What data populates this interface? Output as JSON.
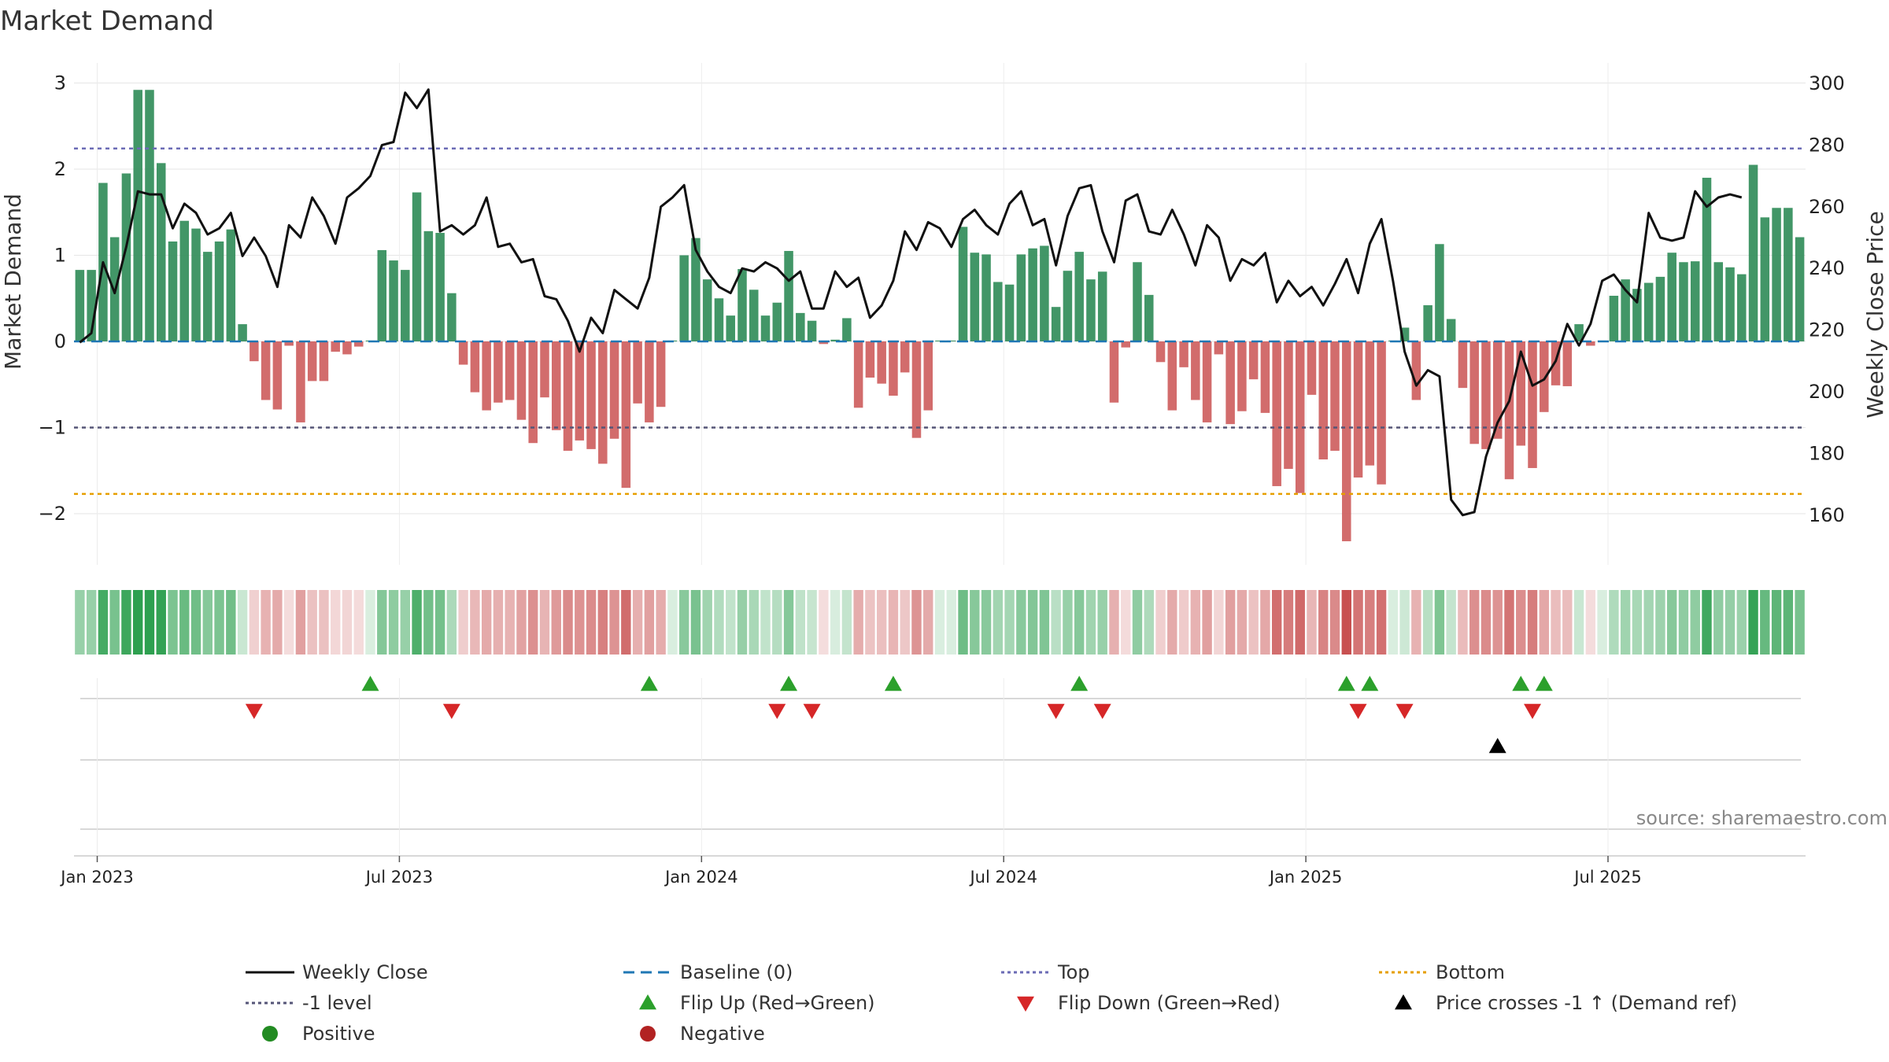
{
  "chart_data": {
    "type": "bar",
    "title": "Market Demand",
    "ylabel_left": "Market Demand",
    "ylabel_right": "Weekly Close Price",
    "ylim_left": [
      -2.55,
      3.2
    ],
    "ylim_right": [
      145,
      303
    ],
    "left_ticks": [
      3,
      2,
      1,
      0,
      -1,
      -2
    ],
    "left_tick_labels": [
      "3",
      "2",
      "1",
      "0",
      "−1",
      "−2"
    ],
    "right_ticks": [
      300,
      280,
      260,
      240,
      220,
      200,
      180,
      160
    ],
    "x_tick_labels": [
      "Jan 2023",
      "Jul 2023",
      "Jan 2024",
      "Jul 2024",
      "Jan 2025",
      "Jul 2025"
    ],
    "x_tick_index": [
      1.5,
      27.5,
      53.5,
      79.5,
      105.5,
      131.5
    ],
    "reference_lines": {
      "top": 2.24,
      "minus_one": -1.0,
      "bottom": -1.77,
      "baseline": 0
    },
    "demand": [
      0.83,
      0.83,
      1.84,
      1.21,
      1.95,
      2.92,
      2.92,
      2.07,
      1.16,
      1.4,
      1.31,
      1.04,
      1.16,
      1.3,
      0.2,
      -0.23,
      -0.68,
      -0.79,
      -0.05,
      -0.94,
      -0.46,
      -0.46,
      -0.12,
      -0.15,
      -0.06,
      0.01,
      1.06,
      0.94,
      0.83,
      1.73,
      1.28,
      1.26,
      0.56,
      -0.27,
      -0.59,
      -0.8,
      -0.71,
      -0.68,
      -0.91,
      -1.18,
      -0.65,
      -1.03,
      -1.27,
      -1.15,
      -1.25,
      -1.42,
      -1.13,
      -1.7,
      -0.72,
      -0.94,
      -0.76,
      0.01,
      1.0,
      1.2,
      0.72,
      0.5,
      0.3,
      0.84,
      0.6,
      0.3,
      0.45,
      1.05,
      0.33,
      0.24,
      -0.03,
      0.02,
      0.27,
      -0.77,
      -0.42,
      -0.49,
      -0.63,
      -0.36,
      -1.12,
      -0.8,
      0.01,
      0.01,
      1.33,
      1.03,
      1.01,
      0.69,
      0.66,
      1.01,
      1.08,
      1.11,
      0.4,
      0.82,
      1.04,
      0.72,
      0.81,
      -0.71,
      -0.07,
      0.92,
      0.54,
      -0.24,
      -0.8,
      -0.3,
      -0.68,
      -0.94,
      -0.15,
      -0.96,
      -0.81,
      -0.44,
      -0.83,
      -1.68,
      -1.48,
      -1.76,
      -0.62,
      -1.37,
      -1.27,
      -2.32,
      -1.58,
      -1.44,
      -1.66,
      0.01,
      0.16,
      -0.68,
      0.42,
      1.13,
      0.26,
      -0.54,
      -1.19,
      -1.25,
      -1.13,
      -1.6,
      -1.21,
      -1.47,
      -0.82,
      -0.51,
      -0.52,
      0.2,
      -0.05,
      0.01,
      0.53,
      0.72,
      0.61,
      0.68,
      0.75,
      1.03,
      0.92,
      0.93,
      1.9,
      0.92,
      0.86,
      0.78,
      2.05,
      1.44,
      1.55,
      1.55,
      1.21
    ],
    "price_x": [
      0,
      1,
      2,
      3,
      4,
      5,
      6,
      7,
      8,
      9,
      10,
      11,
      12,
      13,
      14,
      15,
      16,
      17,
      18,
      19,
      20,
      21,
      22,
      23,
      24,
      25,
      26,
      27,
      28,
      29,
      30,
      31,
      32,
      33,
      34,
      35,
      36,
      37,
      38,
      39,
      40,
      41,
      42,
      43,
      44,
      45,
      46,
      47,
      48,
      49,
      50,
      51,
      52,
      53,
      54,
      55,
      56,
      57,
      58,
      59,
      60,
      61,
      62,
      63,
      64,
      65,
      66,
      67,
      68,
      69,
      70,
      71,
      72,
      73,
      74,
      75,
      76,
      77,
      78,
      79,
      80,
      81,
      82,
      83,
      84,
      85,
      86,
      87,
      88,
      89,
      90,
      91,
      92,
      93,
      94,
      95,
      96,
      97,
      98,
      99,
      100,
      101,
      102,
      103,
      104,
      105,
      106,
      107,
      108,
      109,
      110,
      111,
      112,
      113,
      114,
      115,
      116,
      117,
      118,
      119,
      120,
      121,
      122,
      123,
      124,
      125,
      126,
      127,
      128,
      129,
      130,
      131,
      132,
      133,
      134,
      135,
      136,
      137,
      138,
      139,
      140,
      141,
      142,
      143,
      144
    ],
    "price": [
      216,
      219,
      242,
      232,
      247,
      265,
      264,
      264,
      253,
      261,
      258,
      251,
      253,
      258,
      244,
      250,
      244,
      234,
      254,
      250,
      263,
      257,
      248,
      263,
      266,
      270,
      280,
      281,
      297,
      292,
      298,
      252,
      254,
      251,
      254,
      263,
      247,
      248,
      242,
      243,
      231,
      230,
      223,
      213,
      224,
      219,
      233,
      230,
      227,
      237,
      260,
      263,
      267,
      246,
      239,
      234,
      232,
      240,
      239,
      242,
      240,
      236,
      239,
      227,
      227,
      239,
      234,
      237,
      224,
      228,
      236,
      252,
      246,
      255,
      253,
      247,
      256,
      259,
      254,
      251,
      261,
      265,
      254,
      256,
      241,
      257,
      266,
      267,
      252,
      242,
      262,
      264,
      252,
      251,
      259,
      251,
      241,
      254,
      250,
      236,
      243,
      241,
      245,
      229,
      236,
      231,
      234,
      228,
      235,
      243,
      232,
      248,
      256,
      236,
      213,
      202,
      207,
      205,
      165,
      160,
      161,
      179,
      190,
      197,
      213,
      202,
      204,
      210,
      222,
      215,
      222,
      236,
      238,
      233,
      229,
      258,
      250,
      249,
      250,
      265,
      260,
      263,
      264,
      263
    ],
    "flip_up_x": [
      25,
      49,
      61,
      70,
      86,
      109,
      111,
      124,
      126
    ],
    "flip_down_x": [
      15,
      32,
      60,
      63,
      84,
      88,
      110,
      114,
      125
    ],
    "price_cross_x": [
      122
    ],
    "heat_strip": "demand per week as colored cells (green positive, red negative)",
    "colors": {
      "positive_bar": "#2e8b57",
      "negative_bar": "#cd5c5c",
      "price_line": "#000000",
      "baseline": "#1f77b4",
      "top_line": "#6b6bb5",
      "minus_one_line": "#555577",
      "bottom_line": "#e69f00",
      "flip_up": "#2ca02c",
      "flip_down": "#d62728",
      "positive_dot": "#228b22",
      "negative_dot": "#b22222"
    },
    "legend": [
      {
        "label": "Weekly Close",
        "kind": "line",
        "color": "#111111",
        "dash": ""
      },
      {
        "label": "Baseline (0)",
        "kind": "line",
        "color": "#1f77b4",
        "dash": "14 8"
      },
      {
        "label": "Top",
        "kind": "line",
        "color": "#6b6bb5",
        "dash": "4 4"
      },
      {
        "label": "Bottom",
        "kind": "line",
        "color": "#e69f00",
        "dash": "4 4"
      },
      {
        "label": "-1 level",
        "kind": "line",
        "color": "#555577",
        "dash": "4 4"
      },
      {
        "label": "Flip Up (Red→Green)",
        "kind": "up",
        "color": "#2ca02c"
      },
      {
        "label": "Flip Down (Green→Red)",
        "kind": "down",
        "color": "#d62728"
      },
      {
        "label": "Price crosses -1 ↑ (Demand ref)",
        "kind": "up",
        "color": "#000000"
      },
      {
        "label": "Positive",
        "kind": "dot",
        "color": "#228b22"
      },
      {
        "label": "Negative",
        "kind": "dot",
        "color": "#b22222"
      }
    ],
    "source": "source: sharemaestro.com"
  }
}
